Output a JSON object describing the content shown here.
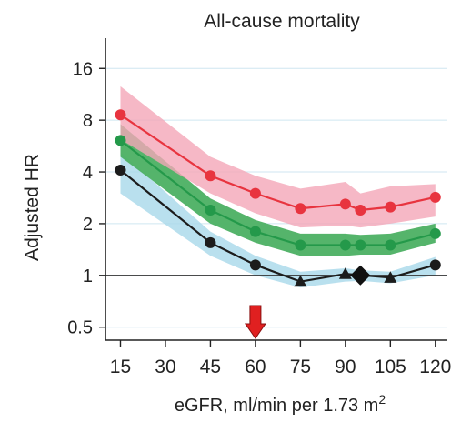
{
  "chart_data": {
    "type": "line",
    "title": "All-cause mortality",
    "xlabel": "eGFR, ml/min per 1.73 m",
    "xlabel_superscript": "2",
    "ylabel": "Adjusted HR",
    "yscale": "log2",
    "ylim": [
      0.42,
      24
    ],
    "xlim": [
      10,
      124
    ],
    "x_ticks": [
      15,
      30,
      45,
      60,
      75,
      90,
      105,
      120
    ],
    "y_ticks": [
      0.5,
      1,
      2,
      4,
      8,
      16
    ],
    "y_tick_labels": [
      "0.5",
      "1",
      "2",
      "4",
      "8",
      "16"
    ],
    "reference_y": 1,
    "grid": true,
    "arrow_x": 60,
    "reference_marker": {
      "x": 95,
      "y": 1,
      "shape": "diamond"
    },
    "series": [
      {
        "color": "#e8343f",
        "band_color": "#f4a6b8",
        "points": [
          {
            "x": 15,
            "y": 8.6,
            "marker": "circle"
          },
          {
            "x": 45,
            "y": 3.8,
            "marker": "circle"
          },
          {
            "x": 60,
            "y": 3.0,
            "marker": "circle"
          },
          {
            "x": 75,
            "y": 2.45,
            "marker": "circle"
          },
          {
            "x": 90,
            "y": 2.6,
            "marker": "circle"
          },
          {
            "x": 95,
            "y": 2.4,
            "marker": "circle"
          },
          {
            "x": 105,
            "y": 2.5,
            "marker": "circle"
          },
          {
            "x": 120,
            "y": 2.85,
            "marker": "circle"
          }
        ],
        "band_x": [
          15,
          45,
          60,
          75,
          90,
          95,
          105,
          120
        ],
        "band_lower": [
          6.2,
          3.0,
          2.3,
          1.9,
          1.95,
          1.9,
          2.0,
          2.2
        ],
        "band_upper": [
          12.6,
          4.9,
          3.8,
          3.2,
          3.5,
          3.0,
          3.3,
          3.4
        ]
      },
      {
        "color": "#24994a",
        "band_color": "#4cb063",
        "points": [
          {
            "x": 15,
            "y": 6.1,
            "marker": "circle"
          },
          {
            "x": 45,
            "y": 2.4,
            "marker": "circle"
          },
          {
            "x": 60,
            "y": 1.8,
            "marker": "circle"
          },
          {
            "x": 75,
            "y": 1.5,
            "marker": "circle"
          },
          {
            "x": 90,
            "y": 1.5,
            "marker": "circle"
          },
          {
            "x": 95,
            "y": 1.5,
            "marker": "circle"
          },
          {
            "x": 105,
            "y": 1.5,
            "marker": "circle"
          },
          {
            "x": 120,
            "y": 1.75,
            "marker": "circle"
          }
        ],
        "band_x": [
          15,
          45,
          60,
          75,
          90,
          95,
          105,
          120
        ],
        "band_lower": [
          4.9,
          2.0,
          1.55,
          1.3,
          1.3,
          1.32,
          1.32,
          1.55
        ],
        "band_upper": [
          7.6,
          2.8,
          2.1,
          1.75,
          1.75,
          1.72,
          1.75,
          2.0
        ]
      },
      {
        "color": "#1c1c1c",
        "band_color": "#a8d8ea",
        "points": [
          {
            "x": 15,
            "y": 4.1,
            "marker": "circle"
          },
          {
            "x": 45,
            "y": 1.55,
            "marker": "circle"
          },
          {
            "x": 60,
            "y": 1.15,
            "marker": "circle"
          },
          {
            "x": 75,
            "y": 0.92,
            "marker": "triangle"
          },
          {
            "x": 90,
            "y": 1.02,
            "marker": "triangle"
          },
          {
            "x": 105,
            "y": 0.97,
            "marker": "triangle"
          },
          {
            "x": 120,
            "y": 1.15,
            "marker": "circle"
          }
        ],
        "band_x": [
          15,
          45,
          60,
          75,
          90,
          95,
          105,
          120
        ],
        "band_lower": [
          3.0,
          1.3,
          1.0,
          0.85,
          0.92,
          0.93,
          0.9,
          1.0
        ],
        "band_upper": [
          5.2,
          1.8,
          1.3,
          1.05,
          1.1,
          1.07,
          1.05,
          1.28
        ]
      }
    ]
  }
}
